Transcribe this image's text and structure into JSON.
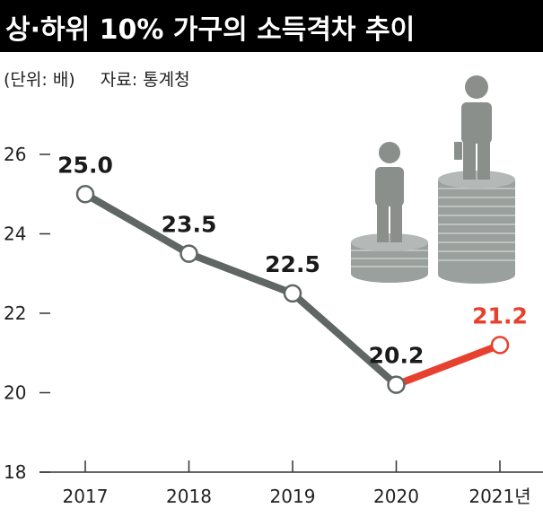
{
  "header": {
    "title": "상·하위 10% 가구의 소득격차 추이",
    "unit": "(단위: 배)",
    "source": "자료: 통계청"
  },
  "colors": {
    "title_bg": "#000000",
    "line_main": "#5f6664",
    "line_highlight": "#e8402e",
    "label_highlight": "#e8402e",
    "illustration": "#8a8f8c"
  },
  "chart_data": {
    "type": "line",
    "categories": [
      "2017",
      "2018",
      "2019",
      "2020",
      "2021년"
    ],
    "values": [
      25.0,
      23.5,
      22.5,
      20.2,
      21.2
    ],
    "data_labels": [
      "25.0",
      "23.5",
      "22.5",
      "20.2",
      "21.2"
    ],
    "highlight_index": 4,
    "ylim": [
      18,
      26
    ],
    "yticks": [
      "18",
      "20",
      "22",
      "24",
      "26"
    ],
    "ytick_values": [
      18,
      20,
      22,
      24,
      26
    ],
    "grid": false,
    "legend": "none"
  }
}
